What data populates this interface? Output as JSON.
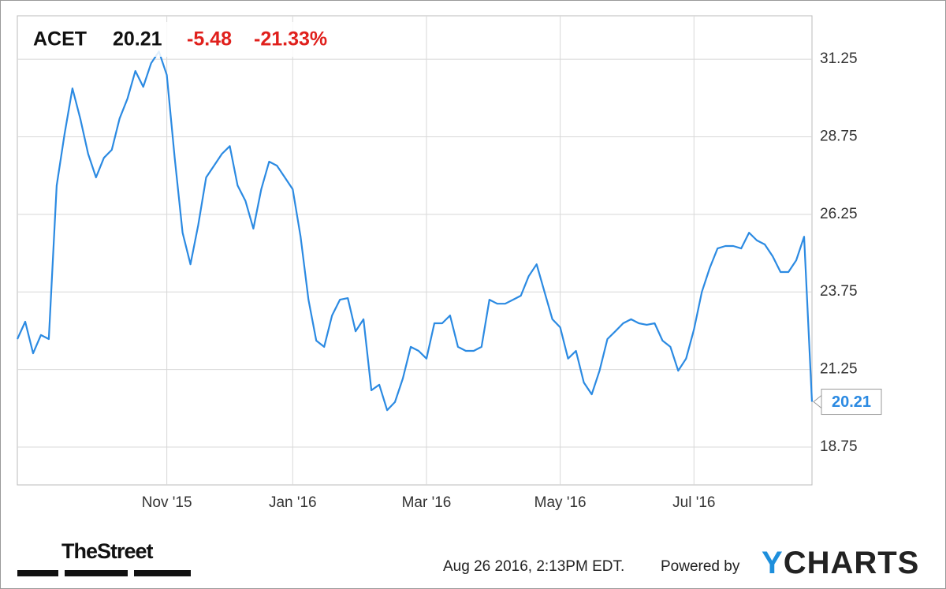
{
  "chart_data": {
    "type": "line",
    "ticker": "ACET",
    "price": "20.21",
    "change": "-5.48",
    "change_percent": "-21.33%",
    "timestamp": "Aug 26 2016, 2:13PM EDT.",
    "powered_by": "Powered by",
    "brand": "YCHARTS",
    "publisher": "TheStreet",
    "color": "#2b8ae2",
    "grid": true,
    "ylim": [
      17.53,
      32.65
    ],
    "yticks": [
      18.75,
      21.25,
      23.75,
      26.25,
      28.75,
      31.25
    ],
    "categories": [
      null,
      null,
      null,
      null,
      null,
      null,
      null,
      null,
      null,
      null,
      null,
      null,
      null,
      null,
      null,
      null,
      null,
      null,
      null,
      "Nov '15",
      null,
      null,
      null,
      null,
      null,
      null,
      null,
      null,
      null,
      null,
      null,
      null,
      null,
      null,
      null,
      "Jan '16",
      null,
      null,
      null,
      null,
      null,
      null,
      null,
      null,
      null,
      null,
      null,
      null,
      null,
      null,
      null,
      null,
      "Mar '16",
      null,
      null,
      null,
      null,
      null,
      null,
      null,
      null,
      null,
      null,
      null,
      null,
      null,
      null,
      null,
      null,
      "May '16",
      null,
      null,
      null,
      null,
      null,
      null,
      null,
      null,
      null,
      null,
      null,
      null,
      null,
      null,
      null,
      null,
      "Jul '16",
      null,
      null,
      null,
      null,
      null,
      null,
      null,
      null,
      null,
      null,
      null,
      null,
      null,
      null,
      null
    ],
    "values": [
      22.23,
      22.79,
      21.77,
      22.36,
      22.23,
      27.18,
      28.84,
      30.31,
      29.34,
      28.2,
      27.44,
      28.07,
      28.33,
      29.34,
      29.98,
      30.87,
      30.36,
      31.12,
      31.5,
      30.74,
      28.07,
      25.66,
      24.64,
      25.91,
      27.44,
      27.82,
      28.2,
      28.45,
      27.18,
      26.68,
      25.79,
      27.06,
      27.95,
      27.82,
      27.44,
      27.06,
      25.53,
      23.5,
      22.18,
      21.98,
      22.99,
      23.5,
      23.55,
      22.48,
      22.87,
      20.58,
      20.76,
      19.94,
      20.2,
      20.96,
      21.98,
      21.85,
      21.6,
      22.74,
      22.74,
      22.99,
      21.98,
      21.85,
      21.85,
      21.98,
      23.5,
      23.37,
      23.37,
      23.5,
      23.63,
      24.26,
      24.64,
      23.75,
      22.87,
      22.61,
      21.6,
      21.85,
      20.83,
      20.45,
      21.21,
      22.23,
      22.48,
      22.74,
      22.87,
      22.74,
      22.69,
      22.74,
      22.18,
      21.98,
      21.21,
      21.6,
      22.54,
      23.75,
      24.52,
      25.15,
      25.23,
      25.23,
      25.15,
      25.66,
      25.41,
      25.28,
      24.9,
      24.39,
      24.39,
      24.77,
      25.53,
      20.21
    ]
  }
}
